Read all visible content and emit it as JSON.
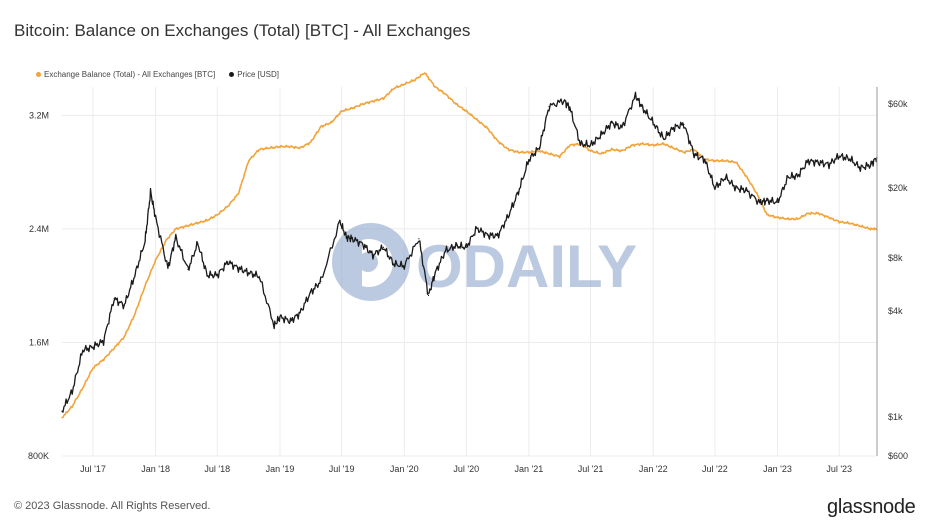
{
  "title": "Bitcoin: Balance on Exchanges (Total) [BTC] - All Exchanges",
  "legend": {
    "balance_label": "Exchange Balance (Total) - All Exchanges [BTC]",
    "price_label": "Price [USD]"
  },
  "watermark": {
    "text": "ODAILY"
  },
  "footer": {
    "copyright": "© 2023 Glassnode. All Rights Reserved.",
    "brand": "glassnode"
  },
  "colors": {
    "balance": "#f2a33a",
    "price": "#1a1a1a",
    "grid": "#ececec",
    "watermark": "#8fa7cc"
  },
  "chart_data": {
    "type": "line",
    "x_tick_labels": [
      "Jul '17",
      "Jan '18",
      "Jul '18",
      "Jan '19",
      "Jul '19",
      "Jan '20",
      "Jul '20",
      "Jan '21",
      "Jul '21",
      "Jan '22",
      "Jul '22",
      "Jan '23",
      "Jul '23"
    ],
    "y_left": {
      "tick_labels": [
        "800K",
        "1.6M",
        "2.4M",
        "3.2M"
      ],
      "ylim": [
        800000,
        3400000
      ]
    },
    "y_right": {
      "scale": "log",
      "tick_labels": [
        "$600",
        "$1k",
        "$4k",
        "$8k",
        "$20k",
        "$60k"
      ],
      "ylim": [
        600,
        75000
      ]
    },
    "xlim": [
      "2017-04-01",
      "2023-10-20"
    ],
    "series": [
      {
        "name": "Exchange Balance (Total) - All Exchanges [BTC]",
        "axis": "left",
        "x": [
          "2017-04-01",
          "2017-05-01",
          "2017-06-01",
          "2017-07-01",
          "2017-08-01",
          "2017-09-01",
          "2017-10-01",
          "2017-11-01",
          "2017-12-01",
          "2018-01-01",
          "2018-02-01",
          "2018-03-01",
          "2018-04-01",
          "2018-05-01",
          "2018-06-01",
          "2018-07-01",
          "2018-08-01",
          "2018-09-01",
          "2018-10-01",
          "2018-11-01",
          "2018-12-01",
          "2019-01-01",
          "2019-02-01",
          "2019-03-01",
          "2019-04-01",
          "2019-05-01",
          "2019-06-01",
          "2019-07-01",
          "2019-08-01",
          "2019-09-01",
          "2019-10-01",
          "2019-11-01",
          "2019-12-01",
          "2020-01-01",
          "2020-02-01",
          "2020-03-01",
          "2020-04-01",
          "2020-05-01",
          "2020-06-01",
          "2020-07-01",
          "2020-08-01",
          "2020-09-01",
          "2020-10-01",
          "2020-11-01",
          "2020-12-01",
          "2021-01-01",
          "2021-02-01",
          "2021-03-01",
          "2021-04-01",
          "2021-05-01",
          "2021-06-01",
          "2021-07-01",
          "2021-08-01",
          "2021-09-01",
          "2021-10-01",
          "2021-11-01",
          "2021-12-01",
          "2022-01-01",
          "2022-02-01",
          "2022-03-01",
          "2022-04-01",
          "2022-05-01",
          "2022-06-01",
          "2022-07-01",
          "2022-08-01",
          "2022-09-01",
          "2022-10-01",
          "2022-11-01",
          "2022-12-01",
          "2023-01-01",
          "2023-02-01",
          "2023-03-01",
          "2023-04-01",
          "2023-05-01",
          "2023-06-01",
          "2023-07-01",
          "2023-08-01",
          "2023-09-01",
          "2023-10-01",
          "2023-10-20"
        ],
        "values": [
          1070000,
          1150000,
          1280000,
          1420000,
          1480000,
          1560000,
          1640000,
          1800000,
          2000000,
          2180000,
          2320000,
          2400000,
          2420000,
          2440000,
          2460000,
          2500000,
          2560000,
          2650000,
          2880000,
          2960000,
          2970000,
          2980000,
          2980000,
          2970000,
          3010000,
          3120000,
          3150000,
          3230000,
          3250000,
          3280000,
          3300000,
          3320000,
          3390000,
          3420000,
          3450000,
          3500000,
          3400000,
          3350000,
          3280000,
          3230000,
          3170000,
          3110000,
          3020000,
          2960000,
          2940000,
          2940000,
          2950000,
          2930000,
          2910000,
          2990000,
          3000000,
          2950000,
          2930000,
          2960000,
          2950000,
          2990000,
          3000000,
          2990000,
          3000000,
          2970000,
          2940000,
          2960000,
          2890000,
          2880000,
          2880000,
          2870000,
          2770000,
          2650000,
          2500000,
          2480000,
          2470000,
          2470000,
          2510000,
          2510000,
          2480000,
          2450000,
          2440000,
          2420000,
          2400000,
          2400000
        ]
      },
      {
        "name": "Price [USD]",
        "axis": "right",
        "x": [
          "2017-04-01",
          "2017-05-01",
          "2017-06-01",
          "2017-07-01",
          "2017-08-01",
          "2017-09-01",
          "2017-10-01",
          "2017-11-01",
          "2017-12-01",
          "2017-12-17",
          "2018-01-01",
          "2018-02-06",
          "2018-03-01",
          "2018-04-06",
          "2018-05-05",
          "2018-06-01",
          "2018-07-01",
          "2018-08-01",
          "2018-09-01",
          "2018-10-01",
          "2018-11-01",
          "2018-12-15",
          "2019-01-01",
          "2019-02-01",
          "2019-03-01",
          "2019-04-01",
          "2019-05-01",
          "2019-06-26",
          "2019-07-15",
          "2019-08-01",
          "2019-09-01",
          "2019-10-01",
          "2019-11-01",
          "2019-12-01",
          "2020-01-01",
          "2020-02-13",
          "2020-03-12",
          "2020-04-01",
          "2020-05-01",
          "2020-06-01",
          "2020-07-01",
          "2020-08-01",
          "2020-09-01",
          "2020-10-01",
          "2020-11-01",
          "2020-12-01",
          "2021-01-01",
          "2021-02-01",
          "2021-03-01",
          "2021-04-14",
          "2021-05-01",
          "2021-06-01",
          "2021-07-01",
          "2021-08-01",
          "2021-09-01",
          "2021-10-01",
          "2021-11-10",
          "2021-12-01",
          "2022-01-01",
          "2022-02-01",
          "2022-03-01",
          "2022-04-01",
          "2022-05-01",
          "2022-06-01",
          "2022-07-01",
          "2022-08-01",
          "2022-09-01",
          "2022-10-01",
          "2022-11-10",
          "2022-12-01",
          "2023-01-01",
          "2023-02-01",
          "2023-03-01",
          "2023-04-01",
          "2023-05-01",
          "2023-06-01",
          "2023-07-01",
          "2023-08-01",
          "2023-09-01",
          "2023-10-01",
          "2023-10-20"
        ],
        "values": [
          1080,
          1400,
          2400,
          2500,
          2700,
          4700,
          4300,
          6400,
          10000,
          19000,
          13500,
          7000,
          10500,
          6900,
          9700,
          6400,
          6400,
          7600,
          7000,
          6600,
          6300,
          3300,
          3700,
          3500,
          3900,
          5100,
          5900,
          12900,
          10500,
          10300,
          9600,
          8300,
          9200,
          7400,
          7200,
          10300,
          4900,
          6600,
          8800,
          9400,
          9200,
          11800,
          10800,
          10700,
          13800,
          19000,
          29000,
          34000,
          58000,
          63000,
          57000,
          35600,
          35000,
          40000,
          47000,
          44000,
          67000,
          57000,
          47000,
          38000,
          44000,
          46000,
          31000,
          29000,
          20000,
          23000,
          20000,
          19400,
          16500,
          17000,
          16600,
          23100,
          23400,
          28500,
          28000,
          27200,
          30400,
          29300,
          26000,
          27000,
          30000
        ]
      }
    ]
  }
}
